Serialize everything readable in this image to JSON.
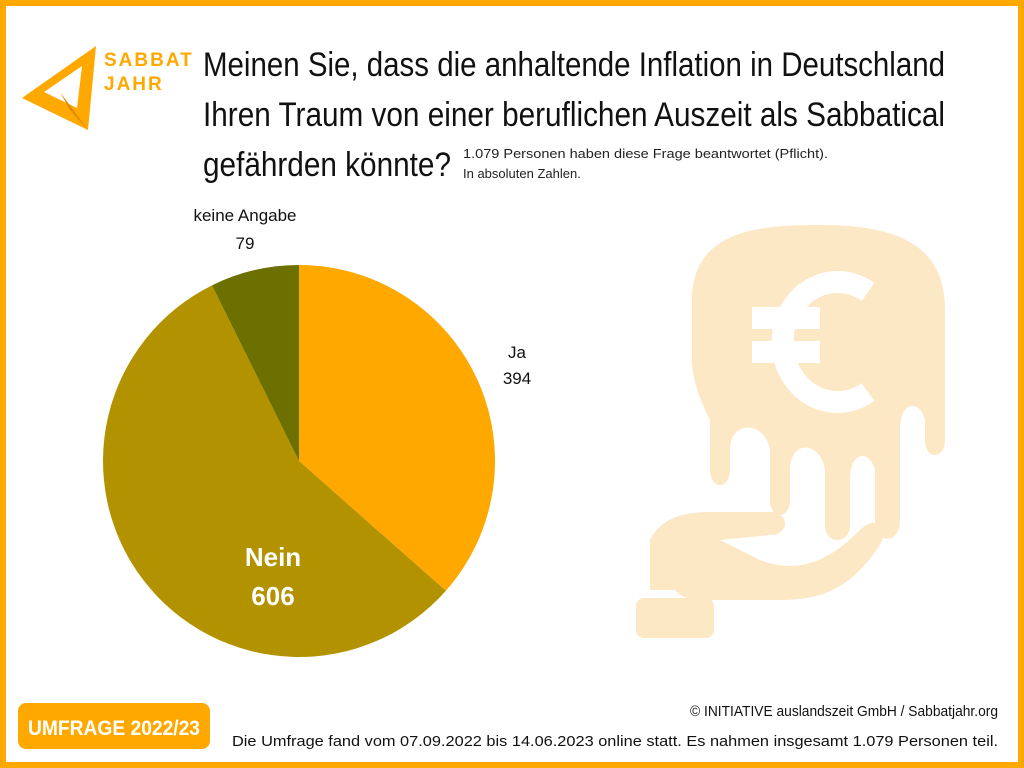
{
  "logo": [
    "SABBAT",
    "JAHR"
  ],
  "chart_data": {
    "type": "pie",
    "title": [
      "Meinen Sie, dass die anhaltende Inflation in Deutschland",
      "Ihren Traum von einer beruflichen Auszeit als Sabbatical",
      "gefährden könnte?"
    ],
    "subtitle": [
      "1.079 Personen haben diese Frage beantwortet (Pflicht).",
      "In absoluten Zahlen."
    ],
    "categories": [
      "Ja",
      "Nein",
      "keine Angabe"
    ],
    "values": [
      394,
      606,
      79
    ],
    "colors": [
      "#ffa800",
      "#b39200",
      "#6b7000"
    ]
  },
  "footer": {
    "badge": "UMFRAGE 2022/23",
    "copyright": "© INITIATIVE auslandszeit GmbH / Sabbatjahr.org",
    "note": "Die Umfrage fand vom 07.09.2022 bis 14.06.2023 online statt. Es nahmen insgesamt 1.079 Personen teil."
  }
}
